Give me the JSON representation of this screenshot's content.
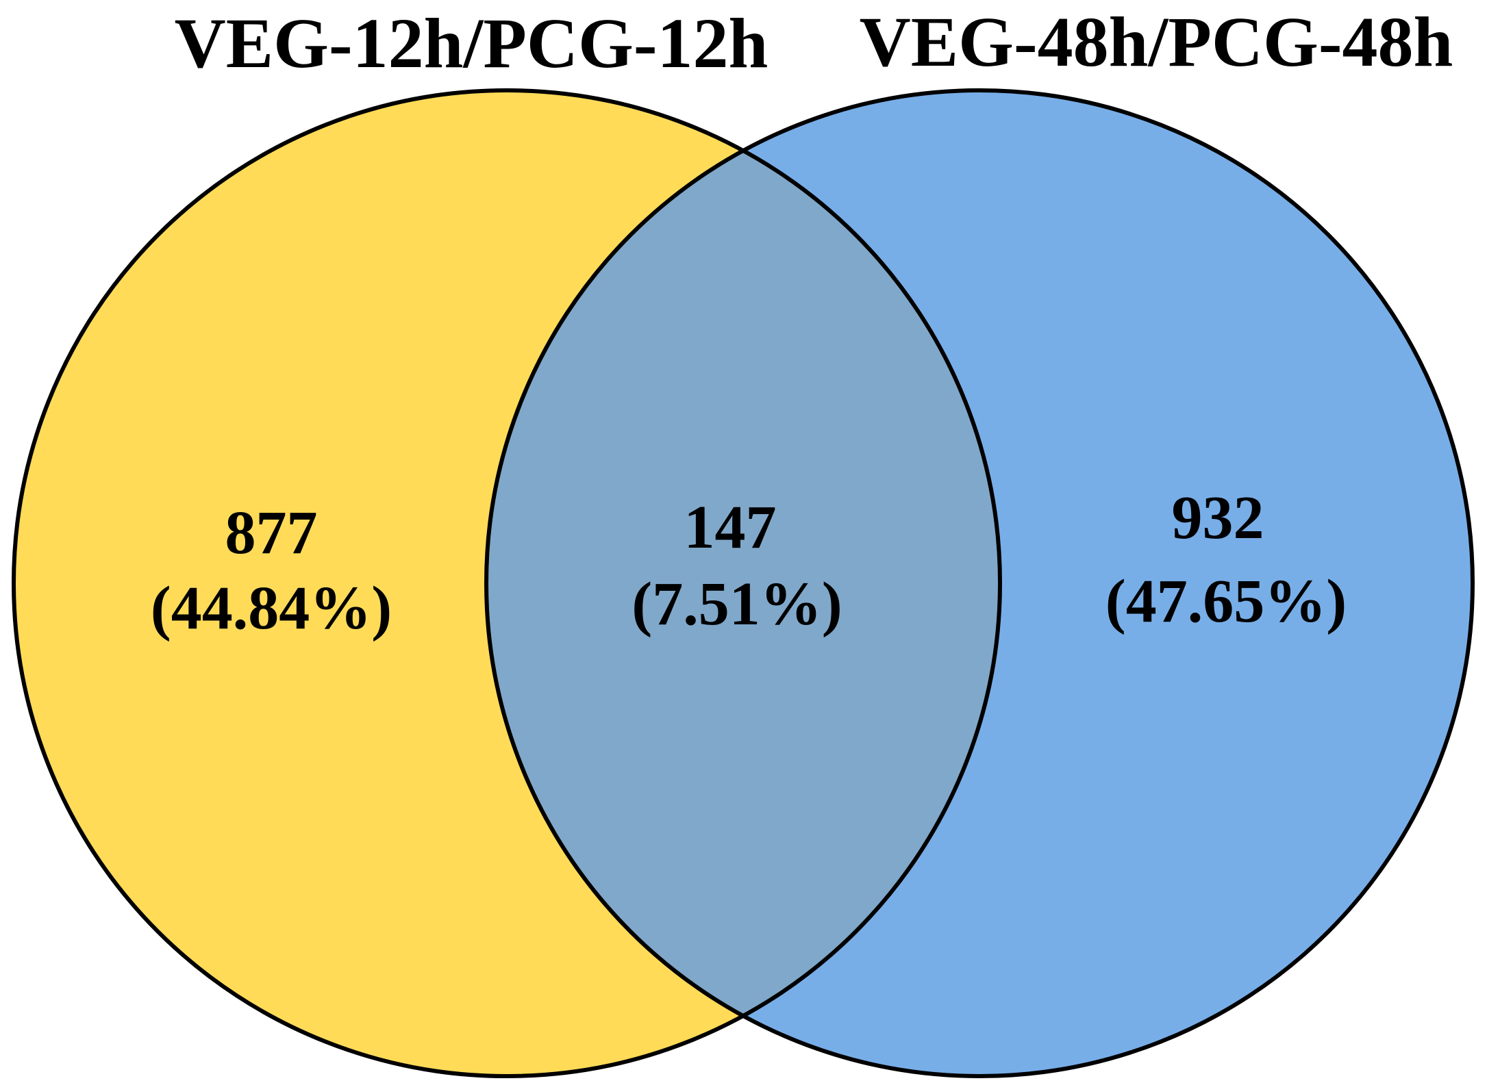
{
  "diagram": {
    "type": "venn",
    "sets": [
      {
        "id": "left",
        "label": "VEG-12h/PCG-12h",
        "color": "#FFDB58"
      },
      {
        "id": "right",
        "label": "VEG-48h/PCG-48h",
        "color": "#78AEE8"
      }
    ],
    "overlap_color": "#80A8CA",
    "outline_color": "#000000",
    "regions": {
      "left_only": {
        "count": "877",
        "percent": "(44.84%)"
      },
      "intersection": {
        "count": "147",
        "percent": "(7.51%)"
      },
      "right_only": {
        "count": "932",
        "percent": "(47.65%)"
      }
    }
  }
}
